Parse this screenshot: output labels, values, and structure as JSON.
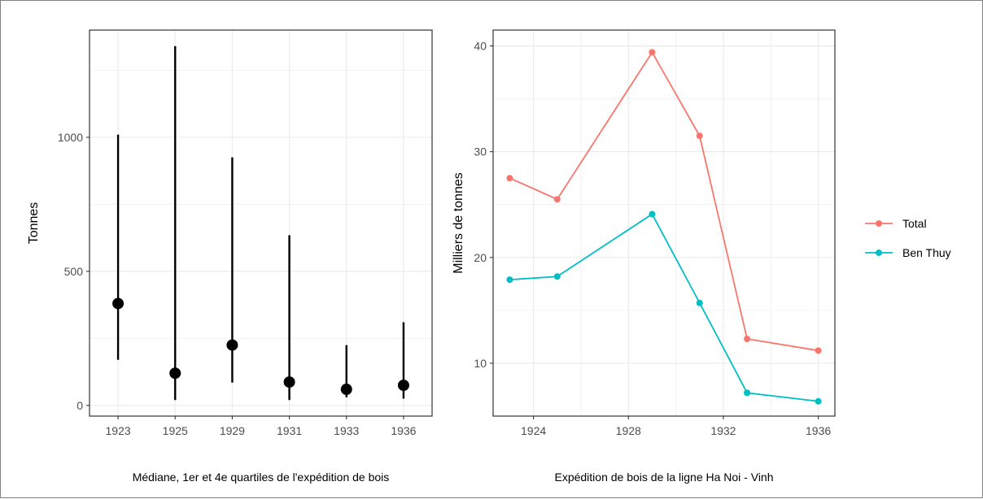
{
  "chart_data": [
    {
      "type": "errorbar",
      "caption": "Médiane, 1er et 4e quartiles de l'expédition de bois",
      "ylabel": "Tonnes",
      "xlabel": "",
      "categories": [
        "1923",
        "1925",
        "1929",
        "1931",
        "1933",
        "1936"
      ],
      "median": [
        380,
        120,
        225,
        87,
        60,
        75
      ],
      "lower": [
        170,
        20,
        85,
        20,
        30,
        25
      ],
      "upper": [
        1010,
        1340,
        925,
        635,
        225,
        310
      ],
      "ylim": [
        -40,
        1400
      ],
      "yticks": [
        0,
        500,
        1000
      ],
      "grid": true,
      "point_color": "#000000"
    },
    {
      "type": "line",
      "caption": "Expédition de bois de la ligne Ha Noi - Vinh",
      "ylabel": "Milliers de tonnes",
      "xlabel": "",
      "x": [
        1923,
        1925,
        1929,
        1931,
        1933,
        1936
      ],
      "xticks": [
        1924,
        1928,
        1932,
        1936
      ],
      "xlim": [
        1922.3,
        1936.7
      ],
      "yticks": [
        10,
        20,
        30,
        40
      ],
      "ylim": [
        5,
        41.5
      ],
      "grid": true,
      "legend_position": "right",
      "series": [
        {
          "name": "Total",
          "color": "#F8766D",
          "values": [
            27.5,
            25.5,
            39.4,
            31.5,
            12.3,
            11.2
          ]
        },
        {
          "name": "Ben Thuy",
          "color": "#00BFC4",
          "values": [
            17.9,
            18.2,
            24.1,
            15.7,
            7.2,
            6.4
          ]
        }
      ]
    }
  ]
}
